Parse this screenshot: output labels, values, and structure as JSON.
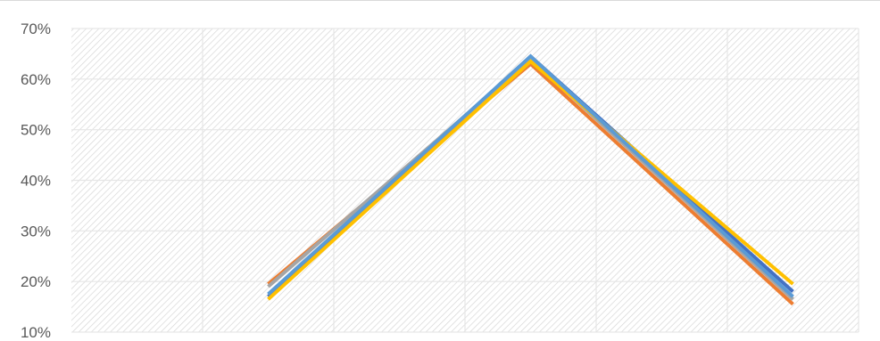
{
  "chart_data": {
    "type": "line",
    "title": "",
    "xlabel": "",
    "ylabel": "",
    "categories": [
      "",
      "",
      "",
      "",
      "",
      ""
    ],
    "ylim": [
      10,
      70
    ],
    "y_ticks": [
      "10%",
      "20%",
      "30%",
      "40%",
      "50%",
      "60%",
      "70%"
    ],
    "y_tick_values": [
      10,
      20,
      30,
      40,
      50,
      60,
      70
    ],
    "grid": true,
    "plot_background": "diagonal hatch",
    "series": [
      {
        "values": [
          null,
          17.0,
          null,
          64.5,
          null,
          18.0
        ],
        "color": "#4472C4"
      },
      {
        "values": [
          null,
          19.5,
          null,
          63.0,
          null,
          15.5
        ],
        "color": "#ED7D31"
      },
      {
        "values": [
          null,
          19.0,
          null,
          64.0,
          null,
          16.5
        ],
        "color": "#A5A5A5"
      },
      {
        "values": [
          null,
          16.5,
          null,
          63.5,
          null,
          19.5
        ],
        "color": "#FFC000"
      },
      {
        "values": [
          null,
          17.5,
          null,
          64.5,
          null,
          17.0
        ],
        "color": "#5B9BD5"
      }
    ]
  }
}
